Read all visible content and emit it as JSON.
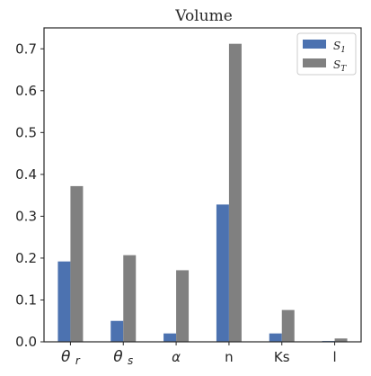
{
  "chart_data": {
    "type": "bar",
    "title": "Volume",
    "xlabel": "",
    "ylabel": "",
    "categories": [
      "θ r",
      "θ s",
      "α",
      "n",
      "Ks",
      "l"
    ],
    "ylim": [
      0,
      0.75
    ],
    "yticks": [
      "0.0",
      "0.1",
      "0.2",
      "0.3",
      "0.4",
      "0.5",
      "0.6",
      "0.7"
    ],
    "ytick_values": [
      0,
      0.1,
      0.2,
      0.3,
      0.4,
      0.5,
      0.6,
      0.7
    ],
    "grid": false,
    "legend_position": "top-right",
    "series": [
      {
        "name": "S1",
        "color": "#4c72b0",
        "values": [
          0.192,
          0.05,
          0.02,
          0.328,
          0.02,
          0.002
        ]
      },
      {
        "name": "ST",
        "color": "#808080",
        "values": [
          0.372,
          0.207,
          0.171,
          0.712,
          0.076,
          0.008
        ]
      }
    ]
  }
}
